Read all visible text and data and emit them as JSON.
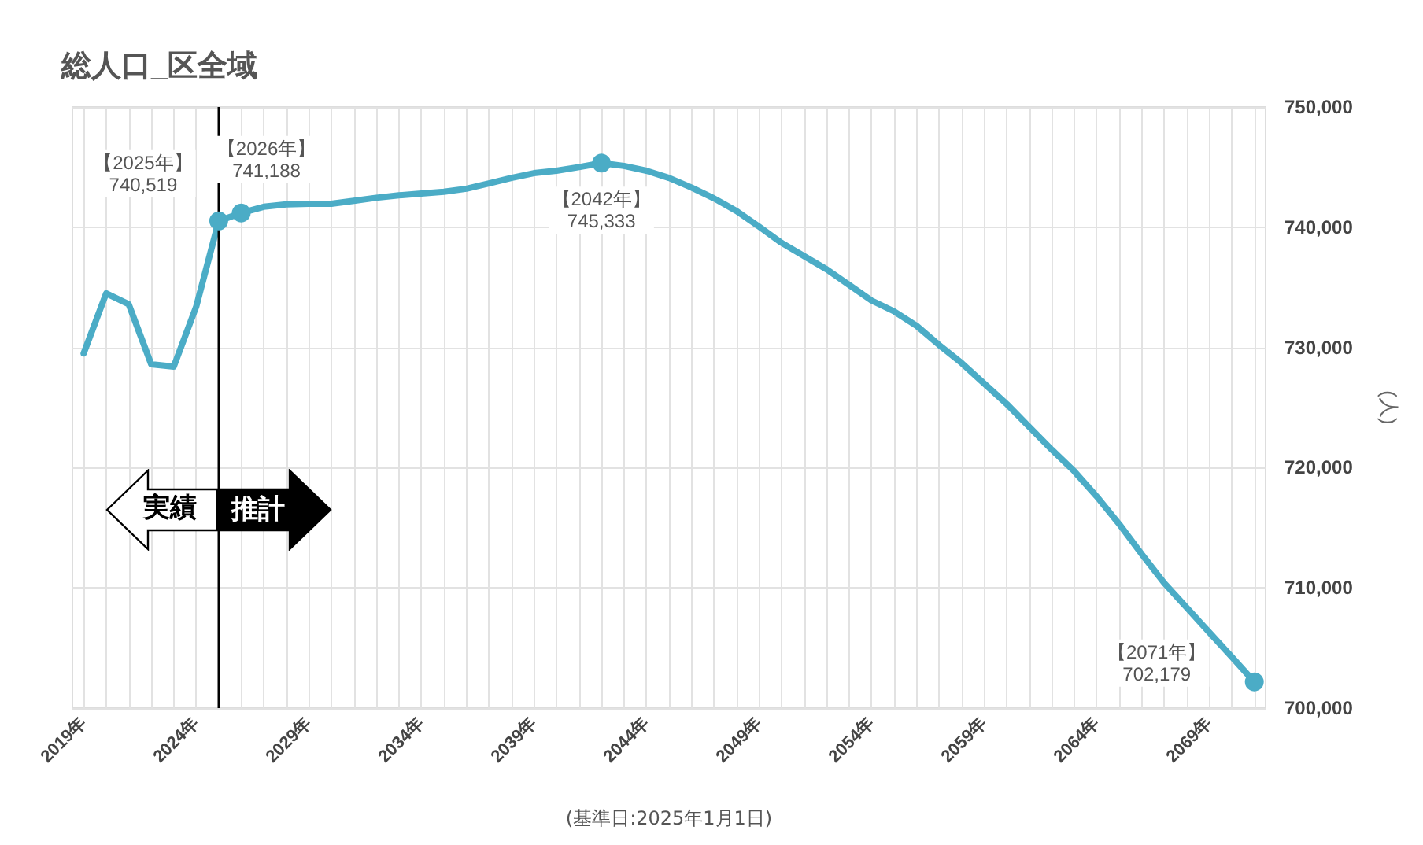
{
  "chart_data": {
    "type": "line",
    "title": "総人口_区全域",
    "ylabel": "(人)",
    "x": [
      2019,
      2020,
      2021,
      2022,
      2023,
      2024,
      2025,
      2026,
      2027,
      2028,
      2029,
      2030,
      2031,
      2032,
      2033,
      2034,
      2035,
      2036,
      2037,
      2038,
      2039,
      2040,
      2041,
      2042,
      2043,
      2044,
      2045,
      2046,
      2047,
      2048,
      2049,
      2050,
      2051,
      2052,
      2053,
      2054,
      2055,
      2056,
      2057,
      2058,
      2059,
      2060,
      2061,
      2062,
      2063,
      2064,
      2065,
      2066,
      2067,
      2068,
      2069,
      2070,
      2071
    ],
    "series": [
      {
        "color": "#4bacc6",
        "values": [
          729500,
          734500,
          733600,
          728600,
          728400,
          733400,
          740519,
          741188,
          741700,
          741900,
          741950,
          741950,
          742200,
          742450,
          742650,
          742800,
          742950,
          743200,
          743650,
          744100,
          744500,
          744700,
          745000,
          745333,
          745100,
          744700,
          744100,
          743300,
          742400,
          741350,
          740050,
          738700,
          737600,
          736500,
          735200,
          733900,
          733000,
          731800,
          730200,
          728700,
          727000,
          725300,
          723400,
          721500,
          719700,
          717600,
          715300,
          712800,
          710400,
          708350,
          706300,
          704250,
          702179
        ]
      }
    ],
    "xlim": [
      2018.5,
      2071.5
    ],
    "xticks": [
      {
        "value": 2019,
        "label": "2019年"
      },
      {
        "value": 2020,
        "label": null
      },
      {
        "value": 2021,
        "label": null
      },
      {
        "value": 2022,
        "label": null
      },
      {
        "value": 2023,
        "label": null
      },
      {
        "value": 2024,
        "label": "2024年"
      },
      {
        "value": 2025,
        "label": null
      },
      {
        "value": 2026,
        "label": null
      },
      {
        "value": 2027,
        "label": null
      },
      {
        "value": 2028,
        "label": null
      },
      {
        "value": 2029,
        "label": "2029年"
      },
      {
        "value": 2030,
        "label": null
      },
      {
        "value": 2031,
        "label": null
      },
      {
        "value": 2032,
        "label": null
      },
      {
        "value": 2033,
        "label": null
      },
      {
        "value": 2034,
        "label": "2034年"
      },
      {
        "value": 2035,
        "label": null
      },
      {
        "value": 2036,
        "label": null
      },
      {
        "value": 2037,
        "label": null
      },
      {
        "value": 2038,
        "label": null
      },
      {
        "value": 2039,
        "label": "2039年"
      },
      {
        "value": 2040,
        "label": null
      },
      {
        "value": 2041,
        "label": null
      },
      {
        "value": 2042,
        "label": null
      },
      {
        "value": 2043,
        "label": null
      },
      {
        "value": 2044,
        "label": "2044年"
      },
      {
        "value": 2045,
        "label": null
      },
      {
        "value": 2046,
        "label": null
      },
      {
        "value": 2047,
        "label": null
      },
      {
        "value": 2048,
        "label": null
      },
      {
        "value": 2049,
        "label": "2049年"
      },
      {
        "value": 2050,
        "label": null
      },
      {
        "value": 2051,
        "label": null
      },
      {
        "value": 2052,
        "label": null
      },
      {
        "value": 2053,
        "label": null
      },
      {
        "value": 2054,
        "label": "2054年"
      },
      {
        "value": 2055,
        "label": null
      },
      {
        "value": 2056,
        "label": null
      },
      {
        "value": 2057,
        "label": null
      },
      {
        "value": 2058,
        "label": null
      },
      {
        "value": 2059,
        "label": "2059年"
      },
      {
        "value": 2060,
        "label": null
      },
      {
        "value": 2061,
        "label": null
      },
      {
        "value": 2062,
        "label": null
      },
      {
        "value": 2063,
        "label": null
      },
      {
        "value": 2064,
        "label": "2064年"
      },
      {
        "value": 2065,
        "label": null
      },
      {
        "value": 2066,
        "label": null
      },
      {
        "value": 2067,
        "label": null
      },
      {
        "value": 2068,
        "label": null
      },
      {
        "value": 2069,
        "label": "2069年"
      },
      {
        "value": 2070,
        "label": null
      },
      {
        "value": 2071,
        "label": null
      }
    ],
    "ylim": [
      700000,
      750000
    ],
    "yticks": [
      {
        "value": 700000,
        "label": "700,000"
      },
      {
        "value": 710000,
        "label": "710,000"
      },
      {
        "value": 720000,
        "label": "720,000"
      },
      {
        "value": 730000,
        "label": "730,000"
      },
      {
        "value": 740000,
        "label": "740,000"
      },
      {
        "value": 750000,
        "label": "750,000"
      }
    ],
    "ref_lines": [
      {
        "axis": "x",
        "value": 2025,
        "color": "#000000"
      }
    ],
    "annotations": [
      {
        "text": "【2025年】\n740,519",
        "x": 2025,
        "y": 740519
      },
      {
        "text": "【2026年】\n741,188",
        "x": 2026,
        "y": 741188
      },
      {
        "text": "【2042年】\n745,333",
        "x": 2042,
        "y": 745333
      },
      {
        "text": "【2071年】\n702,179",
        "x": 2071,
        "y": 702179
      },
      "実績",
      "推計",
      "(基準日:2025年1月1日)"
    ],
    "grid": true,
    "marker": "none",
    "line_style": "solid"
  }
}
